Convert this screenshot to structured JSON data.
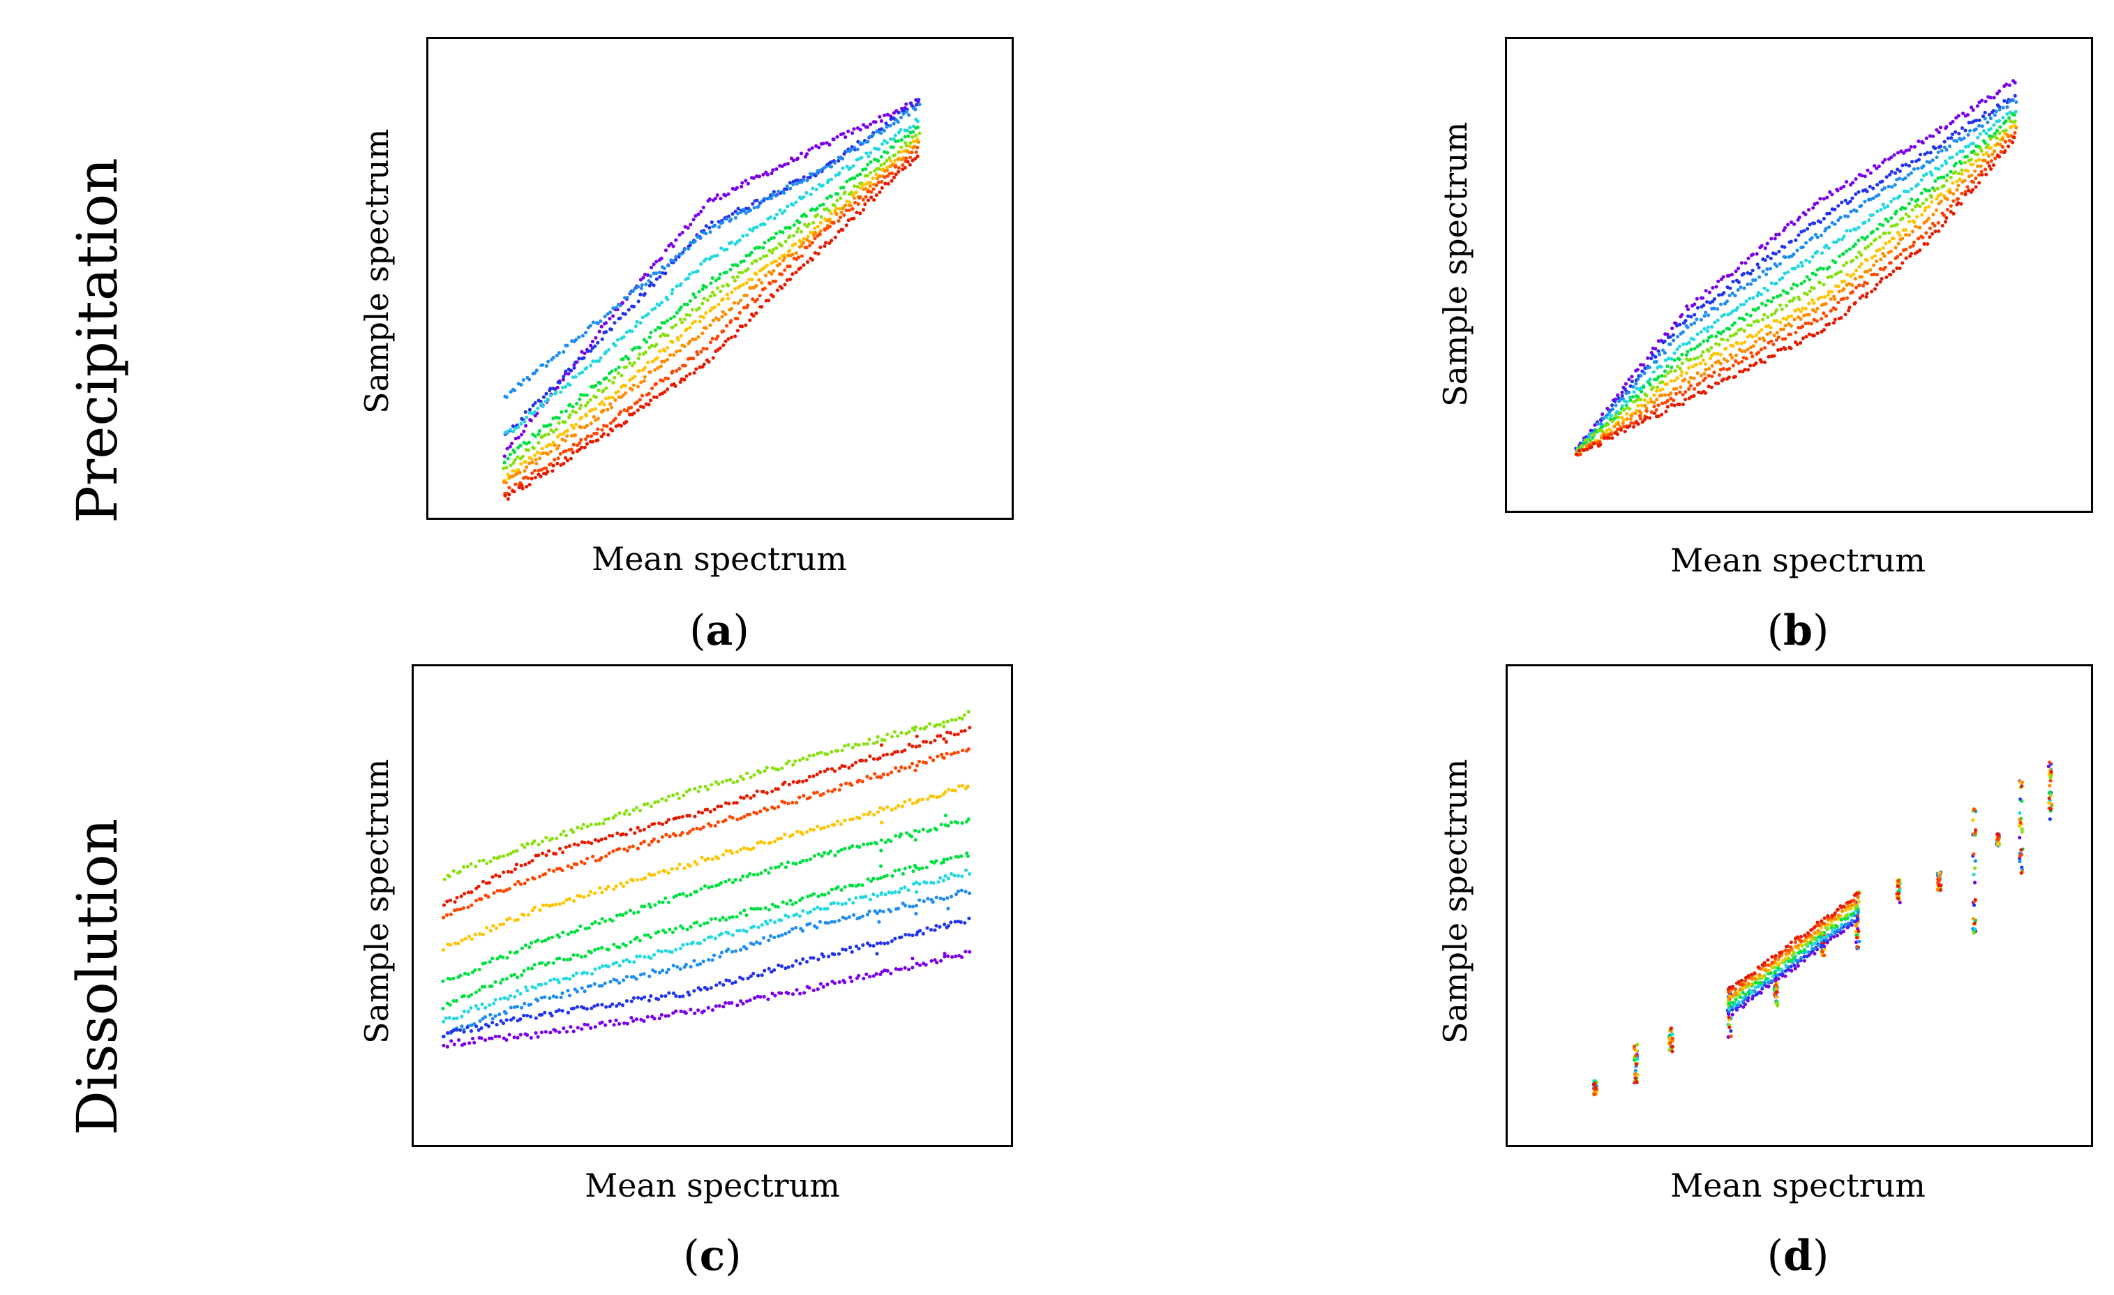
{
  "row_labels": [
    "Precipitation",
    "Dissolution"
  ],
  "palette": [
    "#7a00e8",
    "#2233ee",
    "#1f8cf0",
    "#22d8e0",
    "#00e040",
    "#88e010",
    "#ffc400",
    "#ff8c00",
    "#ff4500",
    "#e51a00"
  ],
  "chart_data": [
    {
      "type": "scatter",
      "panel": "a",
      "row": "Precipitation",
      "title": "",
      "xlabel": "Mean spectrum",
      "ylabel": "Sample spectrum",
      "caption_open": "(",
      "caption_letter": "a",
      "caption_close": ")",
      "xlim": [
        0,
        1
      ],
      "ylim": [
        0,
        1
      ],
      "grid": false,
      "legend": "none",
      "series_count": 10,
      "anchors_x": [
        0.13,
        0.3,
        0.48,
        0.68,
        0.84
      ],
      "series": [
        {
          "name": "s1",
          "color": "#7a00e8",
          "y": [
            0.13,
            0.4,
            0.66,
            0.78,
            0.87
          ]
        },
        {
          "name": "s2",
          "color": "#2233ee",
          "y": [
            0.17,
            0.38,
            0.61,
            0.73,
            0.87
          ]
        },
        {
          "name": "s3",
          "color": "#1f8cf0",
          "y": [
            0.25,
            0.42,
            0.6,
            0.73,
            0.86
          ]
        },
        {
          "name": "s4",
          "color": "#22d8e0",
          "y": [
            0.17,
            0.34,
            0.54,
            0.7,
            0.83
          ]
        },
        {
          "name": "s5",
          "color": "#00e040",
          "y": [
            0.12,
            0.29,
            0.49,
            0.66,
            0.82
          ]
        },
        {
          "name": "s6",
          "color": "#88e010",
          "y": [
            0.1,
            0.27,
            0.46,
            0.64,
            0.8
          ]
        },
        {
          "name": "s7",
          "color": "#ffc400",
          "y": [
            0.08,
            0.24,
            0.43,
            0.62,
            0.79
          ]
        },
        {
          "name": "s8",
          "color": "#ff8c00",
          "y": [
            0.07,
            0.22,
            0.4,
            0.61,
            0.78
          ]
        },
        {
          "name": "s9",
          "color": "#ff4500",
          "y": [
            0.05,
            0.19,
            0.36,
            0.6,
            0.77
          ]
        },
        {
          "name": "s10",
          "color": "#e51a00",
          "y": [
            0.04,
            0.17,
            0.33,
            0.57,
            0.76
          ]
        }
      ]
    },
    {
      "type": "scatter",
      "panel": "b",
      "row": "Precipitation",
      "title": "",
      "xlabel": "Mean spectrum",
      "ylabel": "Sample spectrum",
      "caption_open": "(",
      "caption_letter": "b",
      "caption_close": ")",
      "xlim": [
        0,
        1
      ],
      "ylim": [
        0,
        1
      ],
      "grid": false,
      "legend": "none",
      "series_count": 10,
      "anchors_x": [
        0.12,
        0.3,
        0.55,
        0.72,
        0.87
      ],
      "series": [
        {
          "name": "s1",
          "color": "#7a00e8",
          "y": [
            0.13,
            0.42,
            0.67,
            0.79,
            0.91
          ]
        },
        {
          "name": "s2",
          "color": "#2233ee",
          "y": [
            0.13,
            0.4,
            0.63,
            0.76,
            0.88
          ]
        },
        {
          "name": "s3",
          "color": "#1f8cf0",
          "y": [
            0.13,
            0.38,
            0.6,
            0.74,
            0.87
          ]
        },
        {
          "name": "s4",
          "color": "#22d8e0",
          "y": [
            0.13,
            0.35,
            0.56,
            0.71,
            0.85
          ]
        },
        {
          "name": "s5",
          "color": "#00e040",
          "y": [
            0.13,
            0.33,
            0.52,
            0.68,
            0.84
          ]
        },
        {
          "name": "s6",
          "color": "#88e010",
          "y": [
            0.13,
            0.31,
            0.49,
            0.66,
            0.83
          ]
        },
        {
          "name": "s7",
          "color": "#ffc400",
          "y": [
            0.12,
            0.29,
            0.46,
            0.64,
            0.82
          ]
        },
        {
          "name": "s8",
          "color": "#ff8c00",
          "y": [
            0.12,
            0.27,
            0.44,
            0.62,
            0.81
          ]
        },
        {
          "name": "s9",
          "color": "#ff4500",
          "y": [
            0.12,
            0.25,
            0.42,
            0.59,
            0.8
          ]
        },
        {
          "name": "s10",
          "color": "#e51a00",
          "y": [
            0.12,
            0.23,
            0.39,
            0.57,
            0.79
          ]
        }
      ]
    },
    {
      "type": "scatter",
      "panel": "c",
      "row": "Dissolution",
      "title": "",
      "xlabel": "Mean spectrum",
      "ylabel": "Sample spectrum",
      "caption_open": "(",
      "caption_letter": "c",
      "caption_close": ")",
      "xlim": [
        0,
        1
      ],
      "ylim": [
        0,
        1
      ],
      "grid": false,
      "legend": "none",
      "series_count": 10,
      "anchors_x": [
        0.05,
        0.2,
        0.47,
        0.64,
        0.93
      ],
      "series": [
        {
          "name": "s1",
          "color": "#88e010",
          "y": [
            0.56,
            0.63,
            0.74,
            0.8,
            0.9
          ]
        },
        {
          "name": "s2",
          "color": "#e51a00",
          "y": [
            0.5,
            0.6,
            0.69,
            0.76,
            0.87
          ]
        },
        {
          "name": "s3",
          "color": "#ff4500",
          "y": [
            0.48,
            0.56,
            0.66,
            0.72,
            0.83
          ]
        },
        {
          "name": "s4",
          "color": "#ffc400",
          "y": [
            0.41,
            0.49,
            0.59,
            0.65,
            0.75
          ]
        },
        {
          "name": "s5",
          "color": "#00e040",
          "y": [
            0.34,
            0.42,
            0.53,
            0.59,
            0.68
          ]
        },
        {
          "name": "s6",
          "color": "#00e040",
          "y": [
            0.29,
            0.37,
            0.46,
            0.51,
            0.61
          ]
        },
        {
          "name": "s7",
          "color": "#22d8e0",
          "y": [
            0.26,
            0.33,
            0.42,
            0.48,
            0.57
          ]
        },
        {
          "name": "s8",
          "color": "#1f8cf0",
          "y": [
            0.23,
            0.3,
            0.38,
            0.45,
            0.53
          ]
        },
        {
          "name": "s9",
          "color": "#2233ee",
          "y": [
            0.23,
            0.27,
            0.32,
            0.38,
            0.47
          ]
        },
        {
          "name": "s10",
          "color": "#7a00e8",
          "y": [
            0.21,
            0.23,
            0.28,
            0.32,
            0.4
          ]
        }
      ]
    },
    {
      "type": "scatter",
      "panel": "d",
      "row": "Dissolution",
      "title": "",
      "xlabel": "Mean spectrum",
      "ylabel": "Sample spectrum",
      "caption_open": "(",
      "caption_letter": "d",
      "caption_close": ")",
      "xlim": [
        0,
        1
      ],
      "ylim": [
        0,
        1
      ],
      "grid": false,
      "legend": "none",
      "series_count": 10,
      "clusters_x": [
        0.15,
        0.22,
        0.28,
        0.38,
        0.46,
        0.54,
        0.6,
        0.67,
        0.74,
        0.8,
        0.84,
        0.88,
        0.93
      ],
      "cluster_center_y": [
        0.12,
        0.17,
        0.22,
        0.28,
        0.32,
        0.42,
        0.47,
        0.53,
        0.55,
        0.58,
        0.64,
        0.66,
        0.74
      ],
      "cluster_spread_y": [
        0.03,
        0.08,
        0.05,
        0.12,
        0.06,
        0.05,
        0.12,
        0.05,
        0.04,
        0.28,
        0.03,
        0.2,
        0.12
      ]
    }
  ]
}
